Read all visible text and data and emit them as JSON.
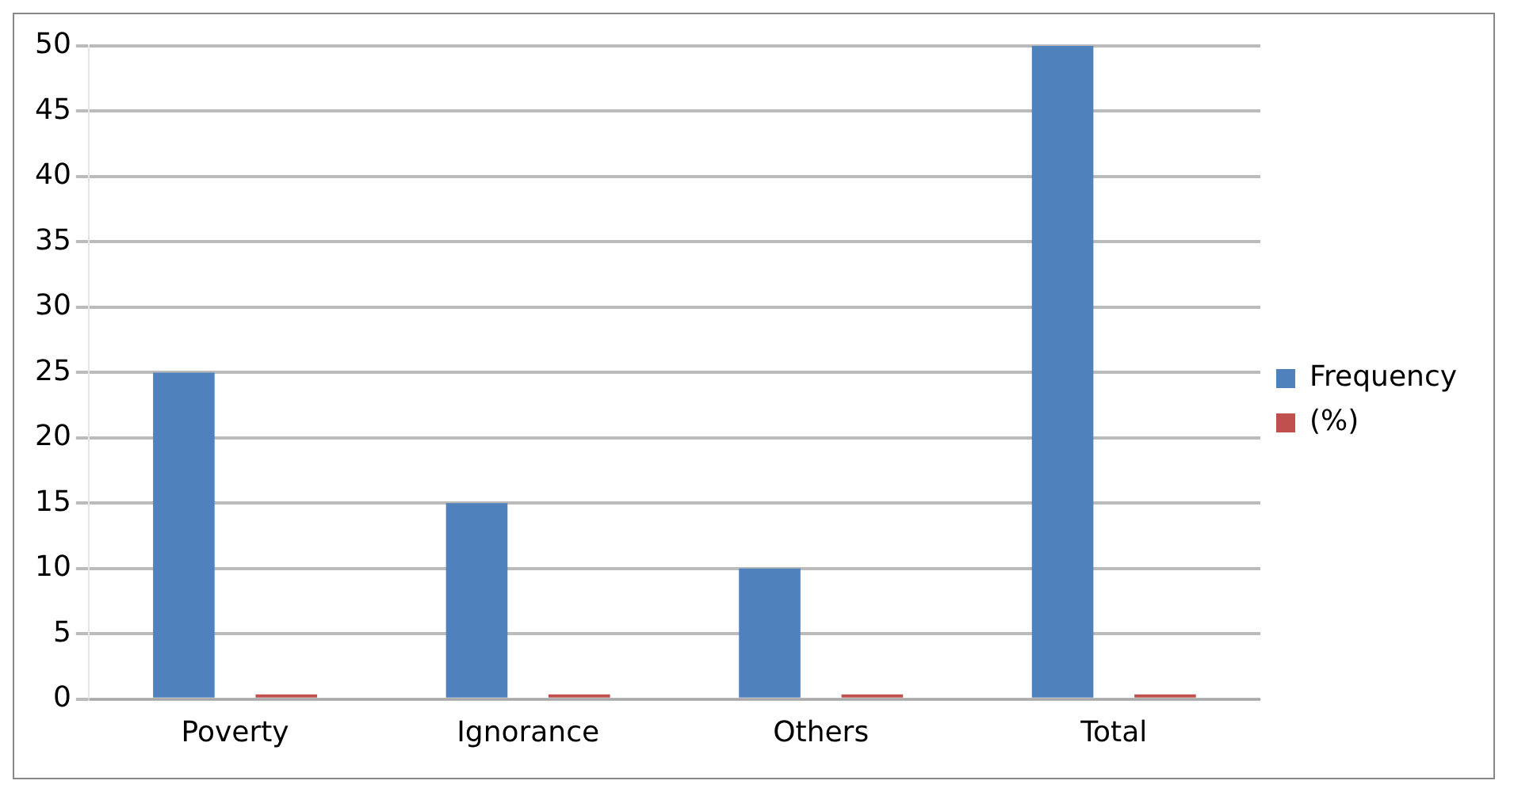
{
  "chart_data": {
    "type": "bar",
    "categories": [
      "Poverty",
      "Ignorance",
      "Others",
      "Total"
    ],
    "series": [
      {
        "name": "Frequency",
        "color": "#4f81bd",
        "values": [
          25,
          15,
          10,
          50
        ]
      },
      {
        "name": "(%)",
        "color": "#c0504d",
        "values": [
          0,
          0,
          0,
          0
        ]
      }
    ],
    "ylim": [
      0,
      50
    ],
    "yticks": [
      0,
      5,
      10,
      15,
      20,
      25,
      30,
      35,
      40,
      45,
      50
    ],
    "grid": "y",
    "legend": "right"
  }
}
